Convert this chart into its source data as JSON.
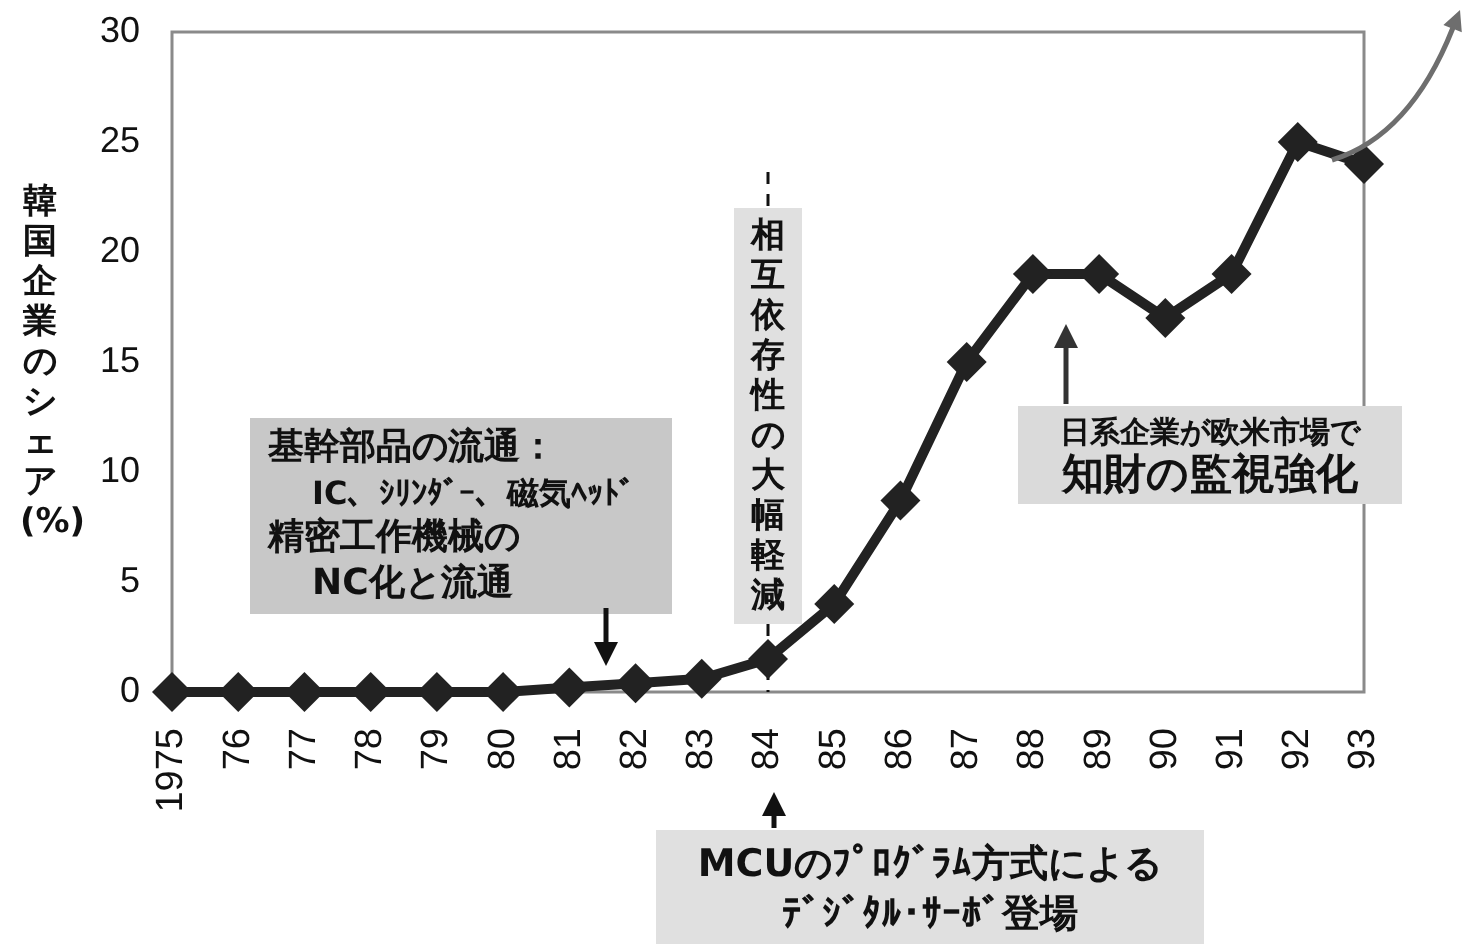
{
  "chart_data": {
    "type": "line",
    "ylabel": "韓国企業のシェア(%)",
    "categories": [
      "1975",
      "76",
      "77",
      "78",
      "79",
      "80",
      "81",
      "82",
      "83",
      "84",
      "85",
      "86",
      "87",
      "88",
      "89",
      "90",
      "91",
      "92",
      "93"
    ],
    "values": [
      0,
      0,
      0,
      0,
      0,
      0,
      0.2,
      0.4,
      0.6,
      1.5,
      4,
      8.7,
      15,
      19,
      19,
      17,
      19,
      25,
      24
    ],
    "color": "#222222",
    "marker": "diamond",
    "ylim": [
      0,
      30
    ],
    "yticks": [
      0,
      5,
      10,
      15,
      20,
      25,
      30
    ],
    "ref_lines": [
      {
        "axis": "x",
        "value": "84",
        "label": "相互依存性の大幅軽減",
        "line_style": "dashed",
        "color": "#111111"
      }
    ],
    "annotations": [
      "基幹部品の流通：IC、ｼﾘﾝﾀﾞｰ、磁気ﾍｯﾄﾞ精密工作機械のNC化と流通",
      "MCUのﾌﾟﾛｸﾞﾗﾑ方式によるﾃﾞｼﾞﾀﾙ･ｻｰﾎﾞ登場",
      "日系企業が欧米市場で知財の監視強化"
    ]
  }
}
